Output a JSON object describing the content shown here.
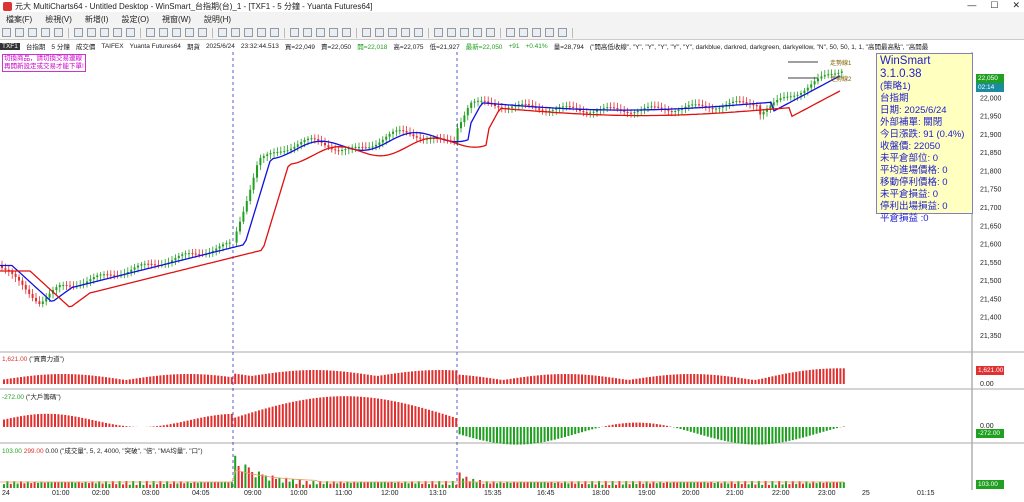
{
  "window": {
    "title": "元大 MultiCharts64 - Untitled Desktop - WinSmart_台指期(台)_1 - [TXF1 - 5 分鐘 - Yuanta Futures64]"
  },
  "menu": [
    "檔案(F)",
    "檢視(V)",
    "新增(I)",
    "設定(O)",
    "視窗(W)",
    "說明(H)"
  ],
  "status": {
    "symbol": "TXF1",
    "name": "台指期",
    "interval": "5 分鐘",
    "type": "成交價",
    "exchange": "TAIFEX",
    "feed": "Yuanta Futures64",
    "session": "期貨",
    "date": "2025/6/24",
    "time": "23:32:44.513",
    "buy": "買=22,049",
    "sell": "賣=22,050",
    "open": "開=22,018",
    "high": "高=22,075",
    "low": "低=21,927",
    "last": "最新=22,050",
    "change": "+91",
    "pct": "+0.41%",
    "vol": "量=28,794",
    "study": "(\"開高低收線\", \"Y\", \"Y\", \"Y\", \"Y\", \"Y\", darkblue, darkred, darkgreen, darkyellow, \"N\", 50, 50, 1, 1, \"高開最高點\", \"高開最"
  },
  "warning": [
    "切換商品，請切換交易連線",
    "再開新設定或交易才能下單!"
  ],
  "info": {
    "title": "WinSmart 3.1.0.38",
    "strategy": "(策略1)",
    "symbol": "台指期",
    "date": "日期: 2025/6/24",
    "mode": "外部補單: 關閉",
    "change": "今日漲跌: 91 (0.4%)",
    "close": "收盤價: 22050",
    "pos": "未平倉部位: 0",
    "avg": "平均進場價格: 0",
    "stop": "移動停利價格: 0",
    "upl": "未平倉損益: 0",
    "exitpl": "停利出場損益: 0",
    "pl": "平倉損益 :0"
  },
  "chart_data": {
    "type": "line",
    "price_axis": [
      "22,050",
      "22,000",
      "21,950",
      "21,900",
      "21,850",
      "21,800",
      "21,750",
      "21,700",
      "21,650",
      "21,600",
      "21,550",
      "21,500",
      "21,450",
      "21,400",
      "21,350"
    ],
    "last_price": "22,050",
    "last_time": "02:14",
    "labels": [
      "走勢線1",
      "走勢線2"
    ],
    "x_labels": [
      "24",
      "01:00",
      "02:00",
      "03:00",
      "04:05",
      "09:00",
      "10:00",
      "11:00",
      "12:00",
      "13:10",
      "15:35",
      "16:45",
      "18:00",
      "19:00",
      "20:00",
      "21:00",
      "22:00",
      "23:00",
      "25",
      "01:15"
    ],
    "panel2": {
      "label": "1,621.00",
      "name": "(\"買賣力道\")",
      "value": "1,621.00",
      "zero": "0.00"
    },
    "panel3": {
      "label": "-272.00",
      "name": "(\"大戶籌碼\")",
      "value": "-272.00",
      "zero": "0.00"
    },
    "panel4": {
      "label": "103.00",
      "label2": "299.00",
      "label3": "0.00",
      "name": "(\"成交量\", 5, 2, 4000, \"突破\", \"倍\", \"MA均量\", \"口\")",
      "value": "103.00"
    }
  },
  "colors": {
    "up": "#e03030",
    "down": "#20a020",
    "ma_fast": "#1010e0",
    "ma_slow": "#e01010",
    "accent": "#2020d0"
  }
}
